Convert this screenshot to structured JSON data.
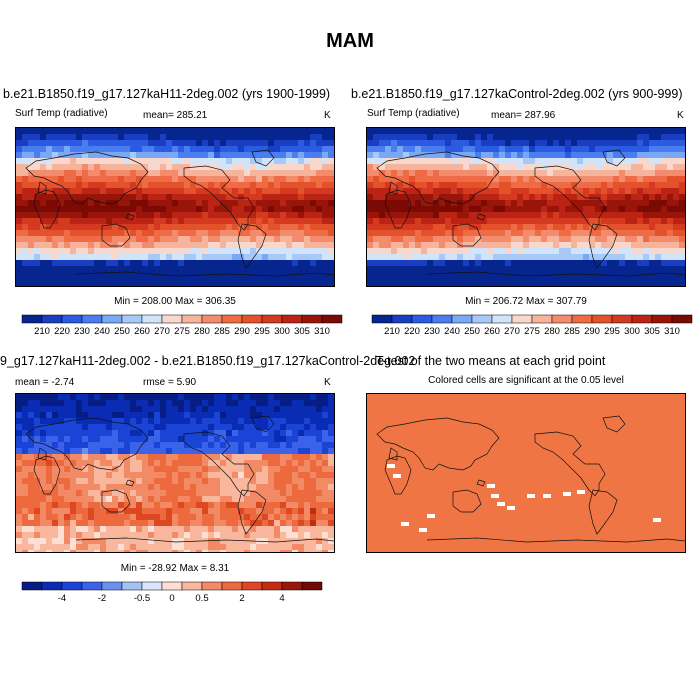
{
  "title": "MAM",
  "colors": {
    "temp": [
      "#07258f",
      "#1a3ec2",
      "#2a5be0",
      "#4a7df0",
      "#7aa8f5",
      "#a7c9f8",
      "#d2e4fa",
      "#f8d8cc",
      "#f6b49c",
      "#f28c6c",
      "#ee6b46",
      "#e4522c",
      "#d5391f",
      "#bb2314",
      "#991509",
      "#7a0a03"
    ],
    "diff": [
      "#061d85",
      "#0a2cb5",
      "#1a44d6",
      "#3b63ea",
      "#6b90f2",
      "#a4c2f6",
      "#d9e6fb",
      "#fde0d3",
      "#f9b79e",
      "#f38a66",
      "#ec6a3e",
      "#dd4722",
      "#c22d12",
      "#9a1606",
      "#730903"
    ],
    "ttest": "#ef7644"
  },
  "chart_data": [
    {
      "type": "heatmap",
      "title": "b.e21.B1850.f19_g17.127kaH11-2deg.002 (yrs 1900-1999)",
      "variable": "Surf Temp (radiative)",
      "mean_label": "mean= 285.21",
      "units": "K",
      "mean": 285.21,
      "min": 208.0,
      "max": 306.35,
      "stats_label": "Min = 208.00 Max = 306.35",
      "levels": [
        210,
        220,
        230,
        240,
        250,
        260,
        270,
        275,
        280,
        285,
        290,
        295,
        300,
        305,
        310
      ]
    },
    {
      "type": "heatmap",
      "title": "b.e21.B1850.f19_g17.127kaControl-2deg.002 (yrs 900-999)",
      "variable": "Surf Temp (radiative)",
      "mean_label": "mean= 287.96",
      "units": "K",
      "mean": 287.96,
      "min": 206.72,
      "max": 307.79,
      "stats_label": "Min = 206.72 Max = 307.79",
      "levels": [
        210,
        220,
        230,
        240,
        250,
        260,
        270,
        275,
        280,
        285,
        290,
        295,
        300,
        305,
        310
      ]
    },
    {
      "type": "heatmap",
      "title": "9_g17.127kaH11-2deg.002 - b.e21.B1850.f19_g17.127kaControl-2deg.002",
      "mean_label": "mean =  -2.74",
      "rmse_label": "rmse =   5.90",
      "units": "K",
      "mean": -2.74,
      "rmse": 5.9,
      "min": -28.92,
      "max": 8.31,
      "stats_label": "Min = -28.92 Max =  8.31",
      "tick_labels": [
        "-4",
        "-2",
        "-0.5",
        "0",
        "0.5",
        "2",
        "4"
      ]
    },
    {
      "type": "heatmap",
      "title": "T-test of the two means at each grid point",
      "subtitle": "Colored cells are significant at the 0.05 level",
      "significance_level": 0.05
    }
  ]
}
